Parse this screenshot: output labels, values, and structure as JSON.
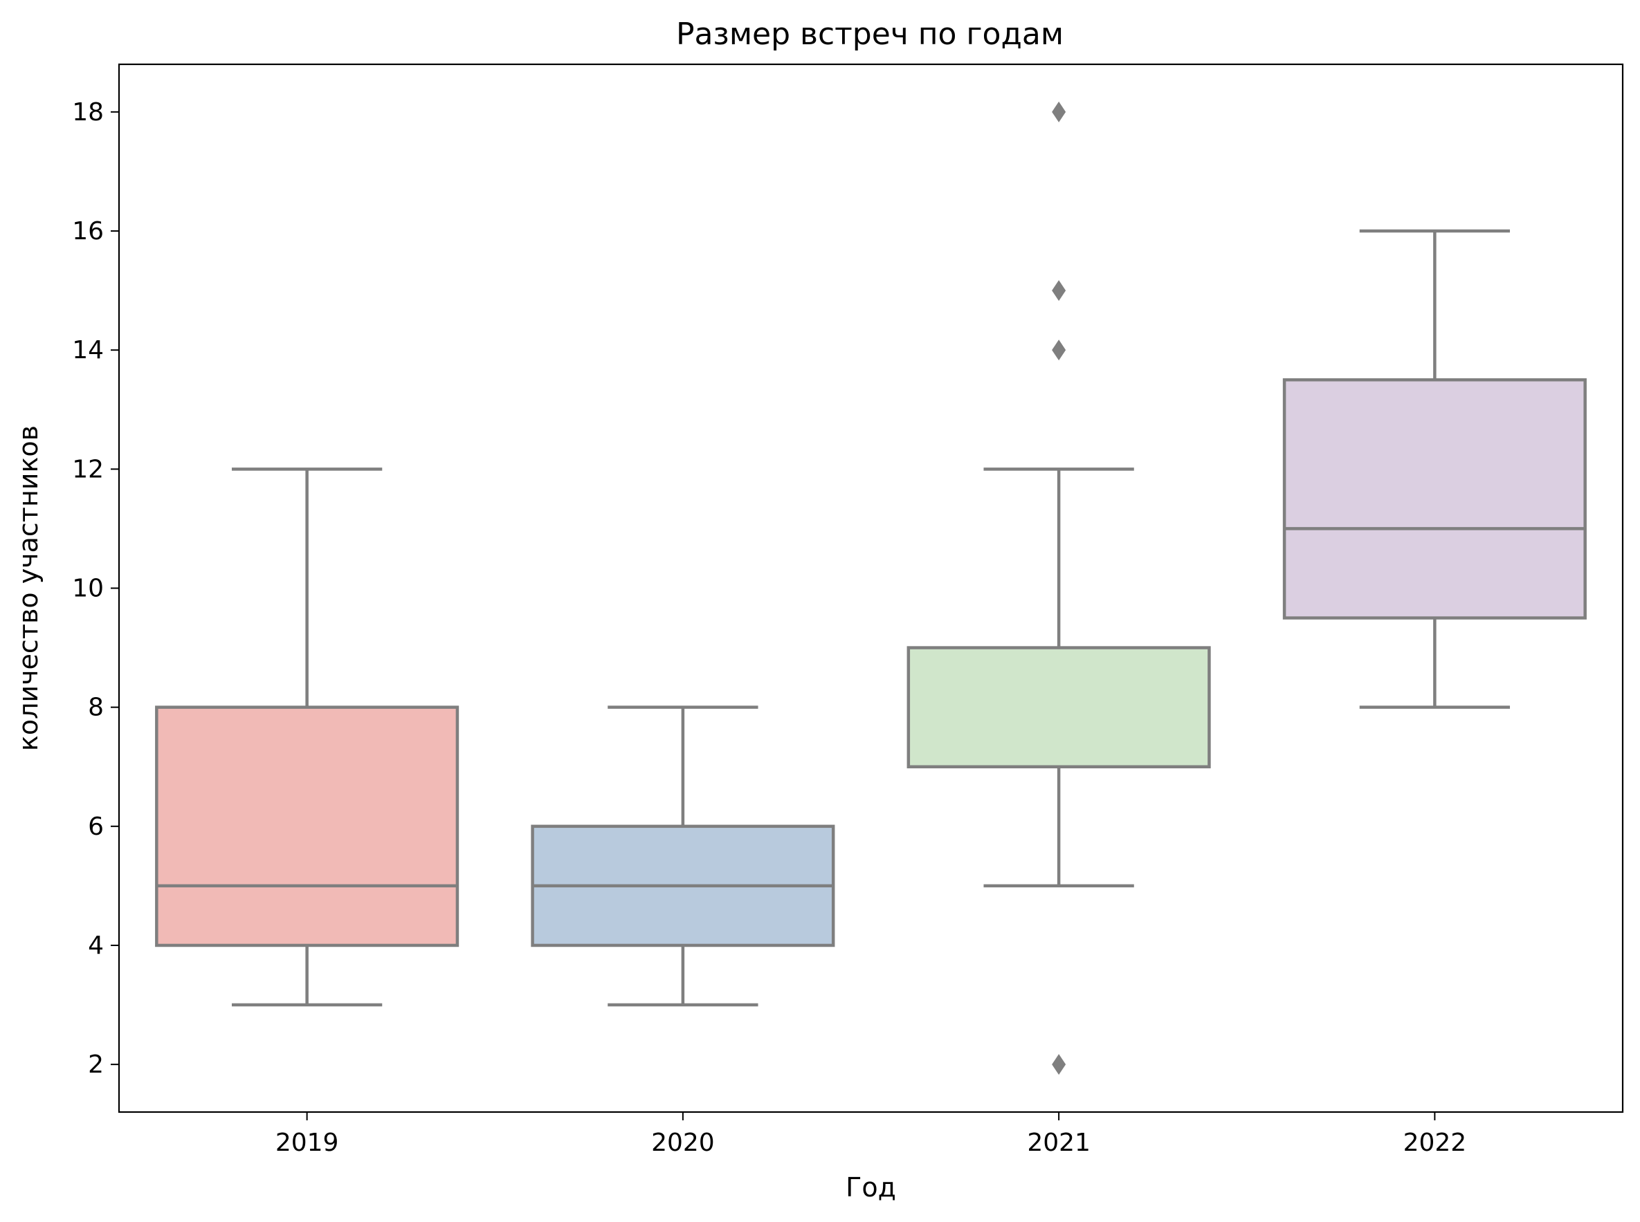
{
  "chart_data": {
    "type": "box",
    "title": "Размер встреч по годам",
    "xlabel": "Год",
    "ylabel": "количество участников",
    "categories": [
      "2019",
      "2020",
      "2021",
      "2022"
    ],
    "ylim": [
      1.2,
      18.8
    ],
    "yticks": [
      2,
      4,
      6,
      8,
      10,
      12,
      14,
      16,
      18
    ],
    "grid": false,
    "line_color": "#7f7f7f",
    "boxes": [
      {
        "category": "2019",
        "whisker_low": 3,
        "q1": 4,
        "median": 5,
        "q3": 8,
        "whisker_high": 12,
        "outliers": [],
        "color": "#f1bab6"
      },
      {
        "category": "2020",
        "whisker_low": 3,
        "q1": 4,
        "median": 5,
        "q3": 6,
        "whisker_high": 8,
        "outliers": [],
        "color": "#b8cadd"
      },
      {
        "category": "2021",
        "whisker_low": 5,
        "q1": 7,
        "median": 7,
        "q3": 9,
        "whisker_high": 12,
        "outliers": [
          2,
          14,
          15,
          18
        ],
        "color": "#d0e6cb"
      },
      {
        "category": "2022",
        "whisker_low": 8,
        "q1": 9.5,
        "median": 11,
        "q3": 13.5,
        "whisker_high": 16,
        "outliers": [],
        "color": "#dbcfe1"
      }
    ]
  }
}
